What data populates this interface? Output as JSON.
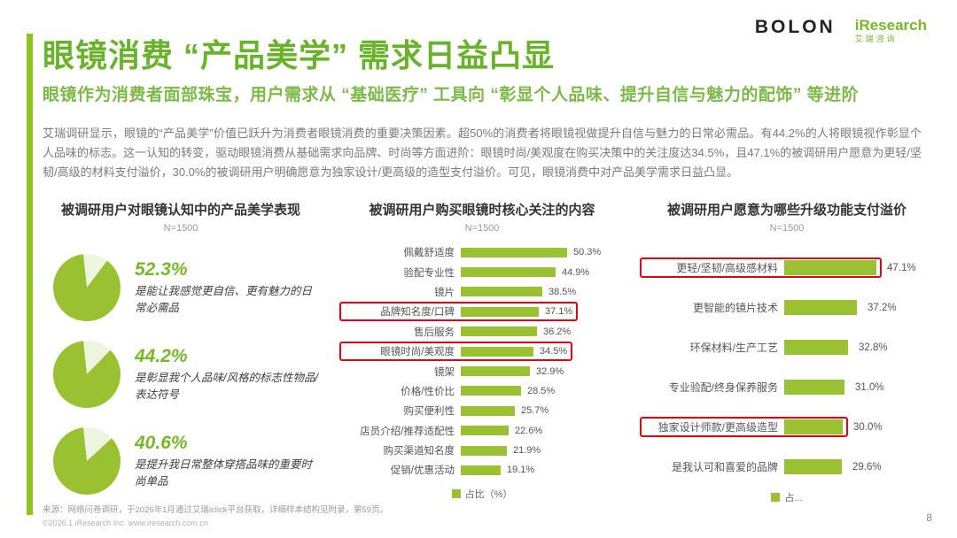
{
  "brand": {
    "bolon": "BOLON",
    "iresearch": "iResearch",
    "iresearch_cn": "艾瑞咨询"
  },
  "colors": {
    "accent": "#68b32a",
    "bar": "#9ac131",
    "pie_rest": "#edf4df",
    "highlight_red": "#e60012"
  },
  "header": {
    "title": "眼镜消费 “产品美学” 需求日益凸显",
    "subtitle": "眼镜作为消费者面部珠宝，用户需求从 “基础医疗” 工具向 “彰显个人品味、提升自信与魅力的配饰” 等进阶",
    "body": "艾瑞调研显示，眼镜的“产品美学”价值已跃升为消费者眼镜消费的重要决策因素。超50%的消费者将眼镜视做提升自信与魅力的日常必需品。有44.2%的人将眼镜视作彰显个人品味的标志。这一认知的转变，驱动眼镜消费从基础需求向品牌、时尚等方面进阶：眼镜时尚/美观度在购买决策中的关注度达34.5%，且47.1%的被调研用户愿意为更轻/坚韧/高级的材料支付溢价，30.0%的被调研用户明确愿意为独家设计/更高级的造型支付溢价。可见，眼镜消费中对产品美学需求日益凸显。"
  },
  "chart_data": [
    {
      "type": "pie",
      "title": "被调研用户对眼镜认知中的产品美学表现",
      "sample": "N=1500",
      "items": [
        {
          "value": 52.3,
          "pct": "52.3%",
          "desc": "是能让我感觉更自信、更有魅力的日常必需品"
        },
        {
          "value": 44.2,
          "pct": "44.2%",
          "desc": "是彰显我个人品味/风格的标志性物品/表达符号"
        },
        {
          "value": 40.6,
          "pct": "40.6%",
          "desc": "是提升我日常整体穿搭品味的重要时尚单品"
        }
      ]
    },
    {
      "type": "bar",
      "orientation": "horizontal",
      "title": "被调研用户购买眼镜时核心关注的内容",
      "sample": "N=1500",
      "legend": "占比（%）",
      "xlim": [
        0,
        55
      ],
      "rows": [
        {
          "label": "佩戴舒适度",
          "value": 50.3,
          "pct": "50.3%",
          "highlight": false
        },
        {
          "label": "验配专业性",
          "value": 44.9,
          "pct": "44.9%",
          "highlight": false
        },
        {
          "label": "镜片",
          "value": 38.5,
          "pct": "38.5%",
          "highlight": false
        },
        {
          "label": "品牌知名度/口碑",
          "value": 37.1,
          "pct": "37.1%",
          "highlight": true
        },
        {
          "label": "售后服务",
          "value": 36.2,
          "pct": "36.2%",
          "highlight": false
        },
        {
          "label": "眼镜时尚/美观度",
          "value": 34.5,
          "pct": "34.5%",
          "highlight": true
        },
        {
          "label": "镜架",
          "value": 32.9,
          "pct": "32.9%",
          "highlight": false
        },
        {
          "label": "价格/性价比",
          "value": 28.5,
          "pct": "28.5%",
          "highlight": false
        },
        {
          "label": "购买便利性",
          "value": 25.7,
          "pct": "25.7%",
          "highlight": false
        },
        {
          "label": "店员介绍/推荐适配性",
          "value": 22.6,
          "pct": "22.6%",
          "highlight": false
        },
        {
          "label": "购买渠道知名度",
          "value": 21.9,
          "pct": "21.9%",
          "highlight": false
        },
        {
          "label": "促销/优惠活动",
          "value": 19.1,
          "pct": "19.1%",
          "highlight": false
        }
      ]
    },
    {
      "type": "bar",
      "orientation": "horizontal",
      "title": "被调研用户愿意为哪些升级功能支付溢价",
      "sample": "N=1500",
      "legend": "占...",
      "xlim": [
        0,
        50
      ],
      "rows": [
        {
          "label": "更轻/坚韧/高级感材料",
          "value": 47.1,
          "pct": "47.1%",
          "highlight": true
        },
        {
          "label": "更智能的镜片技术",
          "value": 37.2,
          "pct": "37.2%",
          "highlight": false
        },
        {
          "label": "环保材料/生产工艺",
          "value": 32.8,
          "pct": "32.8%",
          "highlight": false
        },
        {
          "label": "专业验配/终身保养服务",
          "value": 31.0,
          "pct": "31.0%",
          "highlight": false
        },
        {
          "label": "独家设计师款/更高级造型",
          "value": 30.0,
          "pct": "30.0%",
          "highlight": true
        },
        {
          "label": "是我认可和喜爱的品牌",
          "value": 29.6,
          "pct": "29.6%",
          "highlight": false
        }
      ]
    }
  ],
  "footer": {
    "source": "来源：网络问卷调研，于2026年1月通过艾瑞iclick平台获取，详细样本结构见附录，第59页。",
    "copyright": "©2026.1 iResearch Inc.  www.iresearch.com.cn",
    "page": "8"
  }
}
